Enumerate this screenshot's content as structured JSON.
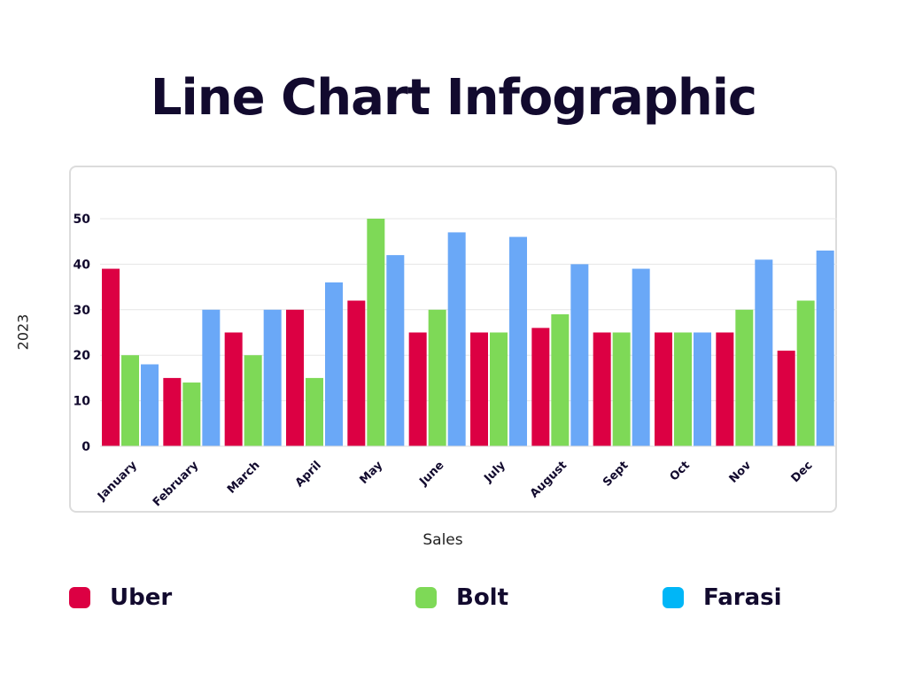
{
  "title": "Line Chart Infographic",
  "chart_data": {
    "type": "bar",
    "title": "Line Chart Infographic",
    "xlabel": "Sales",
    "ylabel": "2023",
    "ylim": [
      0,
      50
    ],
    "yticks": [
      0,
      10,
      20,
      30,
      40,
      50
    ],
    "grid": true,
    "legend_placement": "bottom",
    "categories": [
      "January",
      "February",
      "March",
      "April",
      "May",
      "June",
      "July",
      "August",
      "Sept",
      "Oct",
      "Nov",
      "Dec"
    ],
    "series": [
      {
        "name": "Uber",
        "color": "#dc0043",
        "values": [
          39,
          15,
          25,
          30,
          32,
          25,
          25,
          26,
          25,
          25,
          25,
          21
        ]
      },
      {
        "name": "Bolt",
        "color": "#7ed957",
        "values": [
          20,
          14,
          20,
          15,
          50,
          30,
          25,
          29,
          25,
          25,
          30,
          32
        ]
      },
      {
        "name": "Farasi",
        "color": "#6aa8f7",
        "legend_color": "#00b6f7",
        "values": [
          18,
          30,
          30,
          36,
          42,
          47,
          46,
          40,
          39,
          25,
          41,
          43
        ]
      }
    ]
  }
}
